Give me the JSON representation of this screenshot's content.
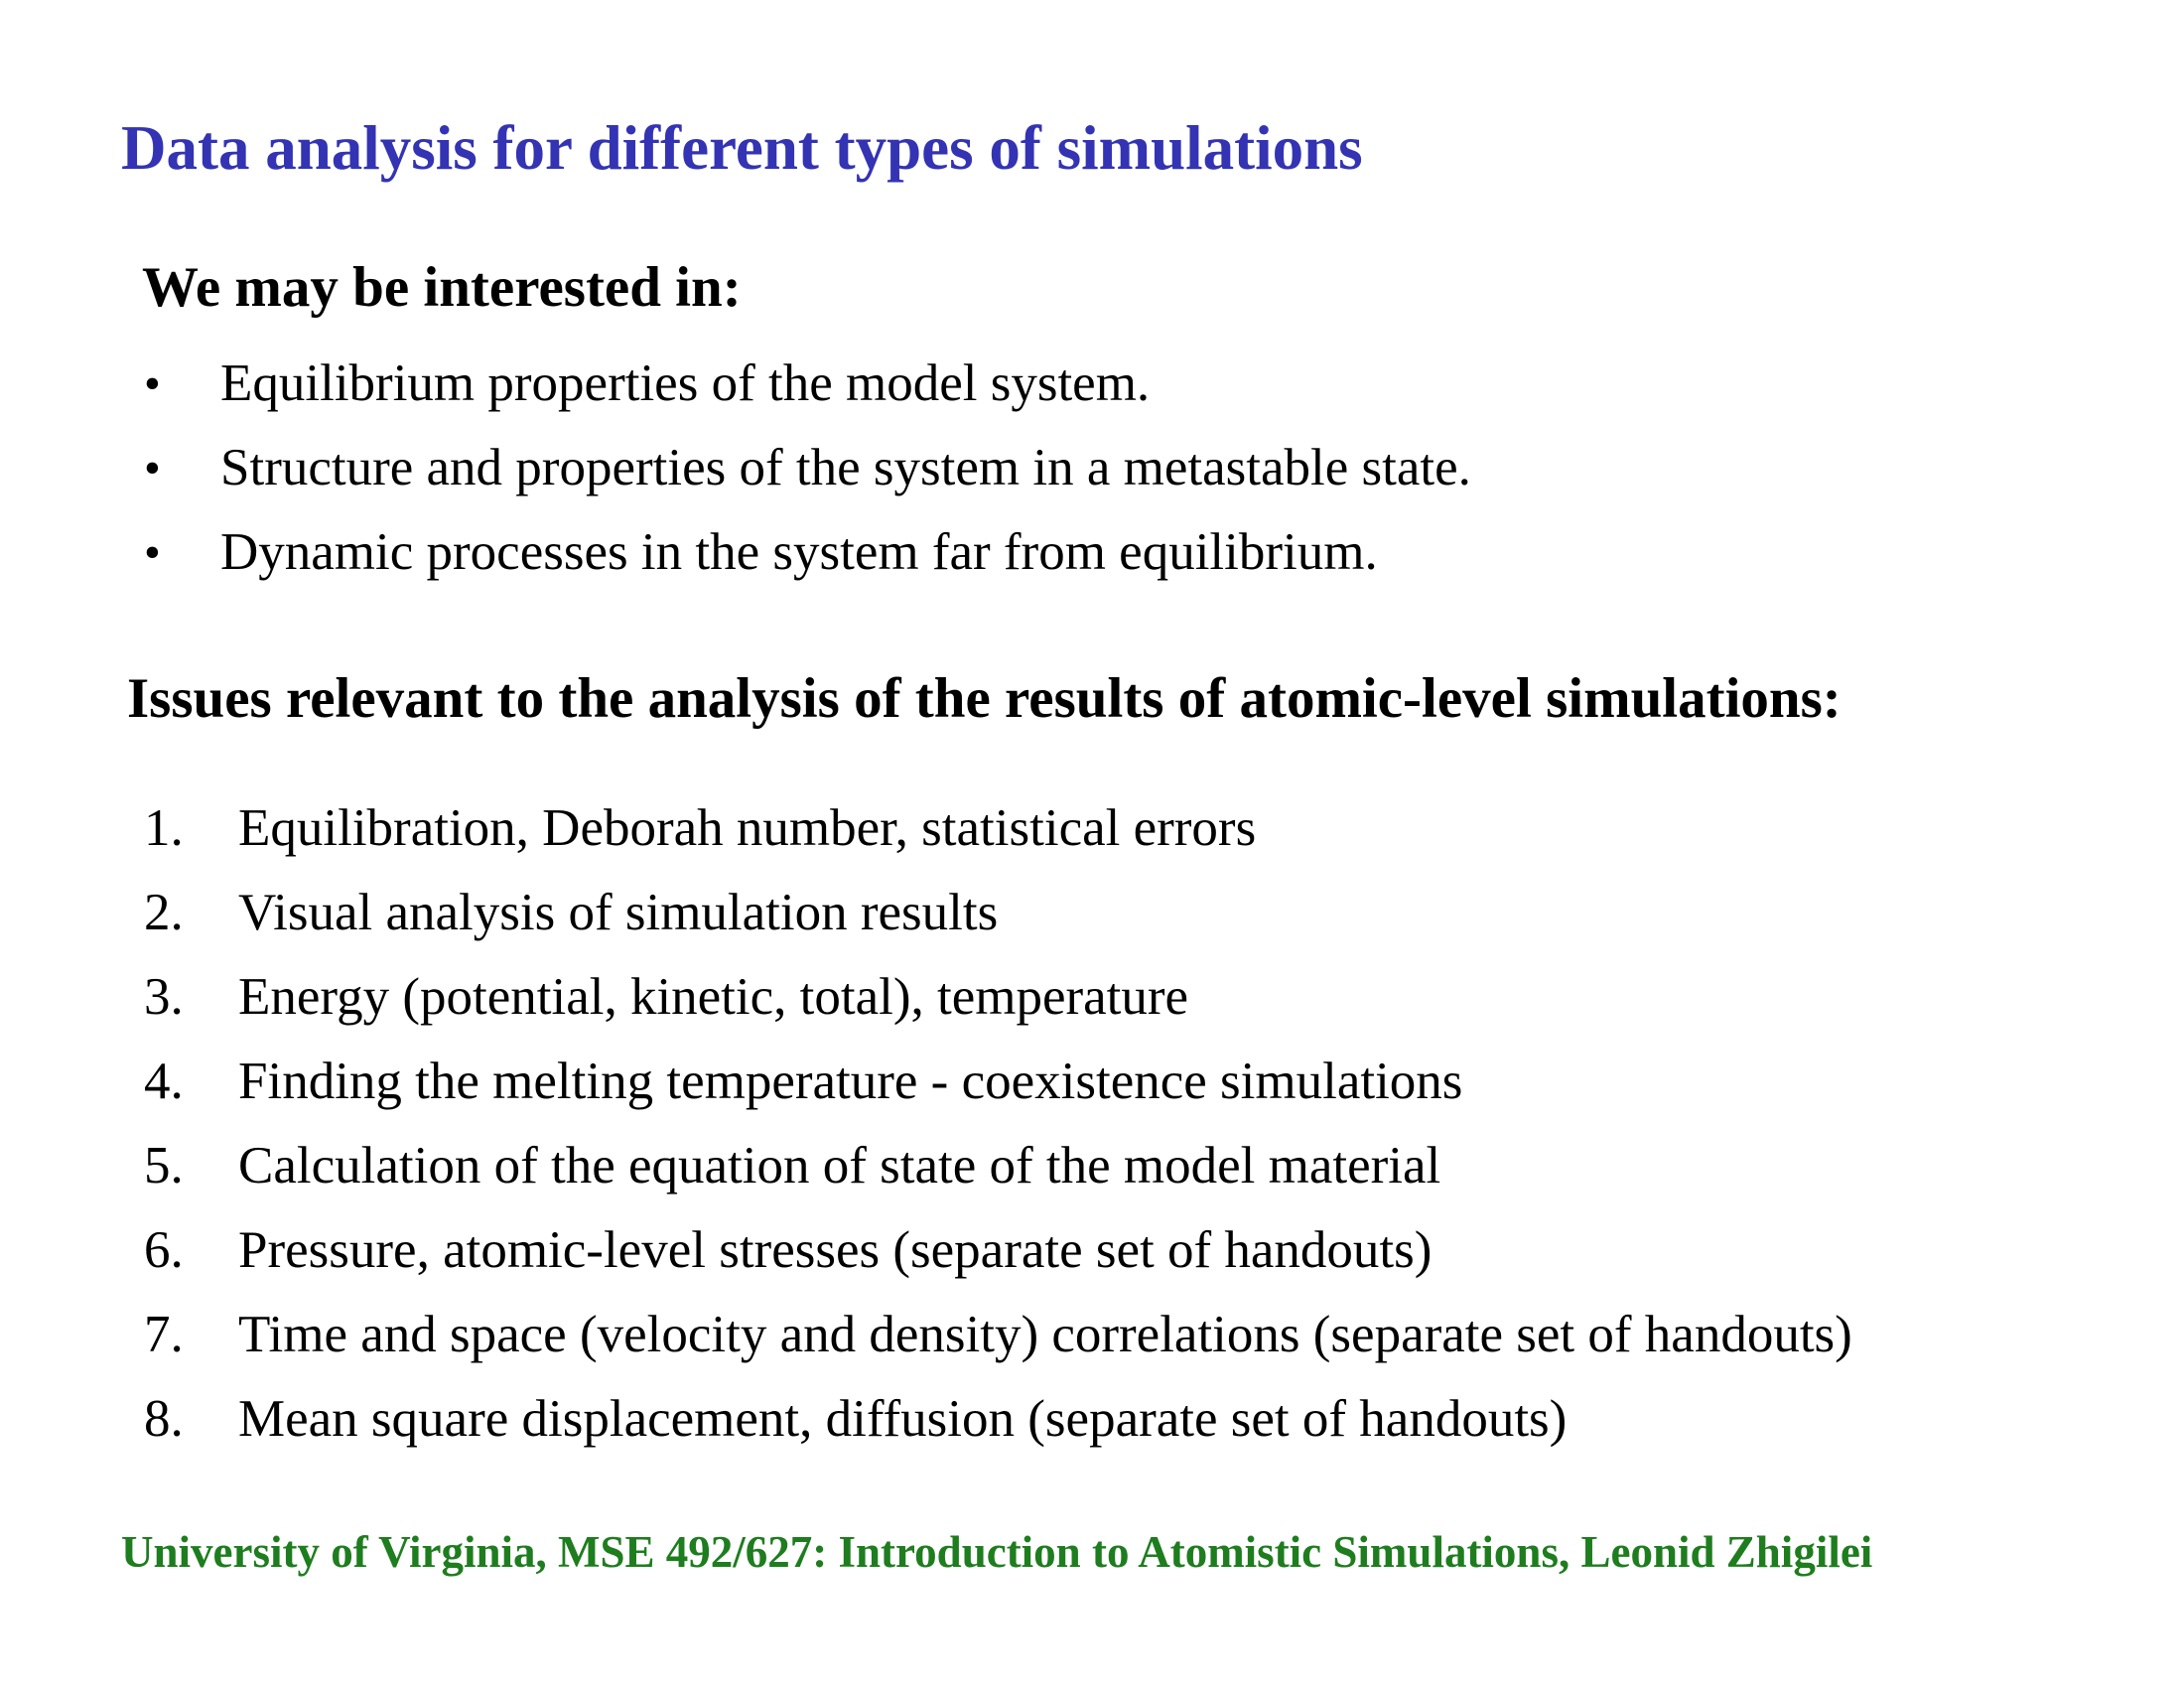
{
  "slide": {
    "title": "Data analysis for different types of simulations",
    "interests": {
      "heading": "We may be interested in:",
      "bullet_char": "•",
      "items": [
        "Equilibrium properties of the model system.",
        "Structure and properties of the system in a metastable state.",
        "Dynamic processes in the system far from equilibrium."
      ]
    },
    "issues": {
      "heading": "Issues relevant to the analysis of the results of atomic-level simulations:",
      "items": [
        {
          "num": "1.",
          "text": "Equilibration, Deborah number, statistical errors"
        },
        {
          "num": "2.",
          "text": "Visual analysis of simulation results"
        },
        {
          "num": "3.",
          "text": "Energy (potential, kinetic, total), temperature"
        },
        {
          "num": "4.",
          "text": "Finding the melting temperature - coexistence simulations"
        },
        {
          "num": "5.",
          "text": "Calculation of the equation of state of the model material"
        },
        {
          "num": "6.",
          "text": "Pressure, atomic-level stresses (separate set of handouts)"
        },
        {
          "num": "7.",
          "text": "Time and space (velocity and density) correlations (separate set of handouts)"
        },
        {
          "num": "8.",
          "text": "Mean square displacement, diffusion (separate set of handouts)"
        }
      ]
    },
    "footer": "University of Virginia, MSE 492/627: Introduction to Atomistic Simulations, Leonid Zhigilei",
    "colors": {
      "title": "#3333b4",
      "body": "#000000",
      "footer": "#1e7d1e",
      "background": "#ffffff"
    }
  }
}
